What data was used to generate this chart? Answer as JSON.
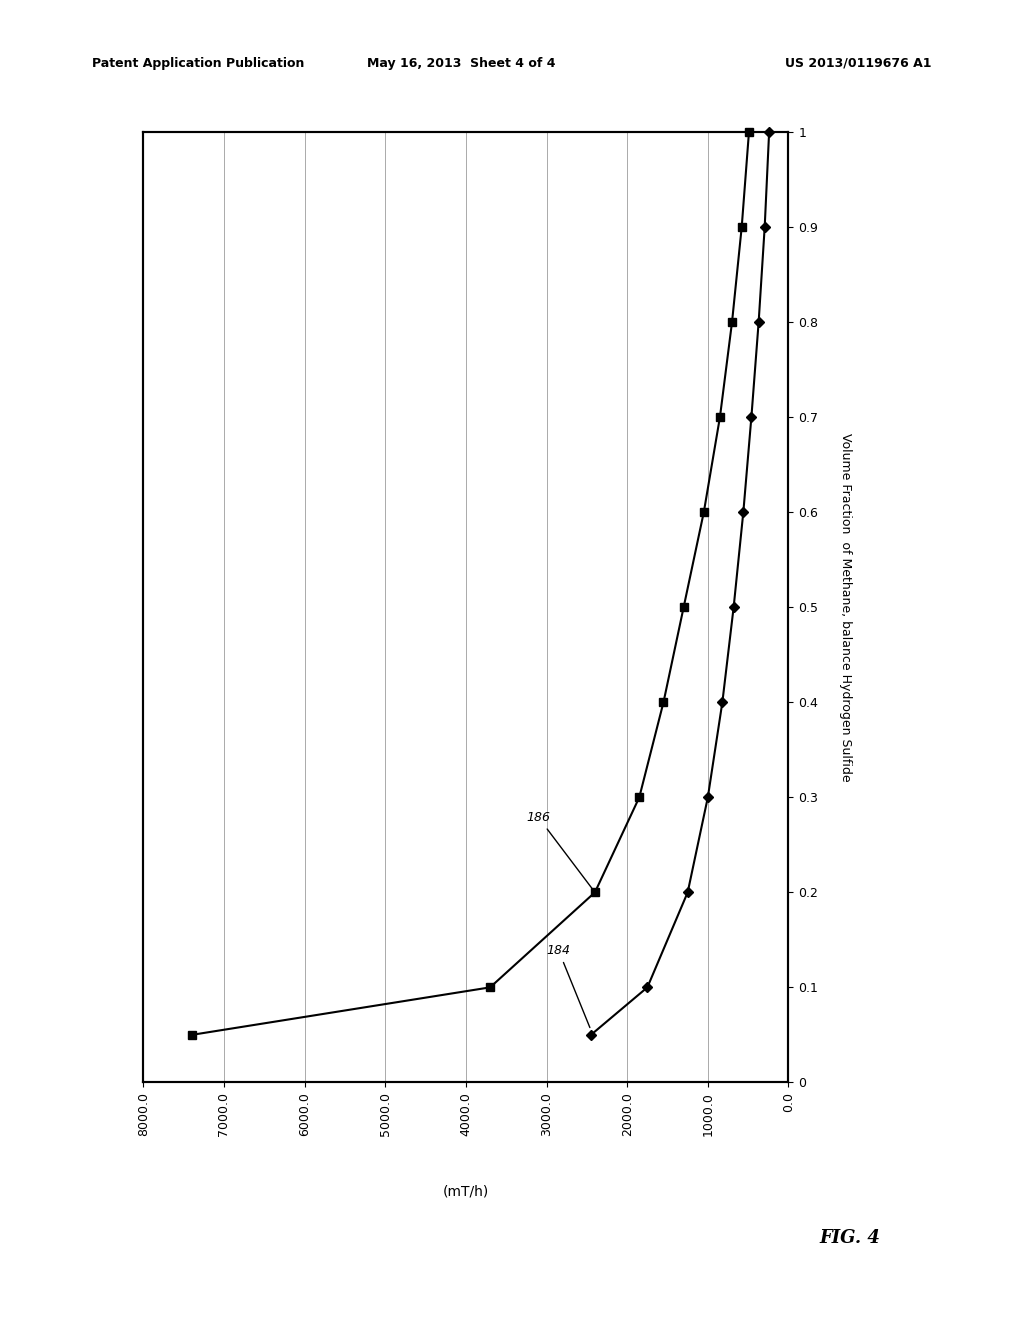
{
  "title": "",
  "xlabel": "(mT/h)",
  "ylabel": "Volume Fraction  of Methane, balance Hydrogen Sulfide",
  "xlim": [
    8000,
    0
  ],
  "ylim": [
    0,
    1.0
  ],
  "xticks": [
    8000.0,
    7000.0,
    6000.0,
    5000.0,
    4000.0,
    3000.0,
    2000.0,
    1000.0,
    0.0
  ],
  "yticks": [
    0,
    0.1,
    0.2,
    0.3,
    0.4,
    0.5,
    0.6,
    0.7,
    0.8,
    0.9,
    1.0
  ],
  "curve186": {
    "label": "186",
    "marker": "s",
    "x": [
      7400,
      3700,
      2400,
      1850,
      1550,
      1300,
      1050,
      850,
      700,
      580,
      490
    ],
    "y": [
      0.05,
      0.1,
      0.2,
      0.3,
      0.4,
      0.5,
      0.6,
      0.7,
      0.8,
      0.9,
      1.0
    ]
  },
  "curve184": {
    "label": "184",
    "marker": "D",
    "x": [
      2450,
      1750,
      1250,
      1000,
      820,
      680,
      560,
      460,
      370,
      295,
      240
    ],
    "y": [
      0.05,
      0.1,
      0.2,
      0.3,
      0.4,
      0.5,
      0.6,
      0.7,
      0.8,
      0.9,
      1.0
    ]
  },
  "line_color": "#000000",
  "background_color": "#ffffff",
  "grid_color": "#aaaaaa",
  "header_left": "Patent Application Publication",
  "header_center": "May 16, 2013  Sheet 4 of 4",
  "header_right": "US 2013/0119676 A1",
  "fig_label": "FIG. 4"
}
